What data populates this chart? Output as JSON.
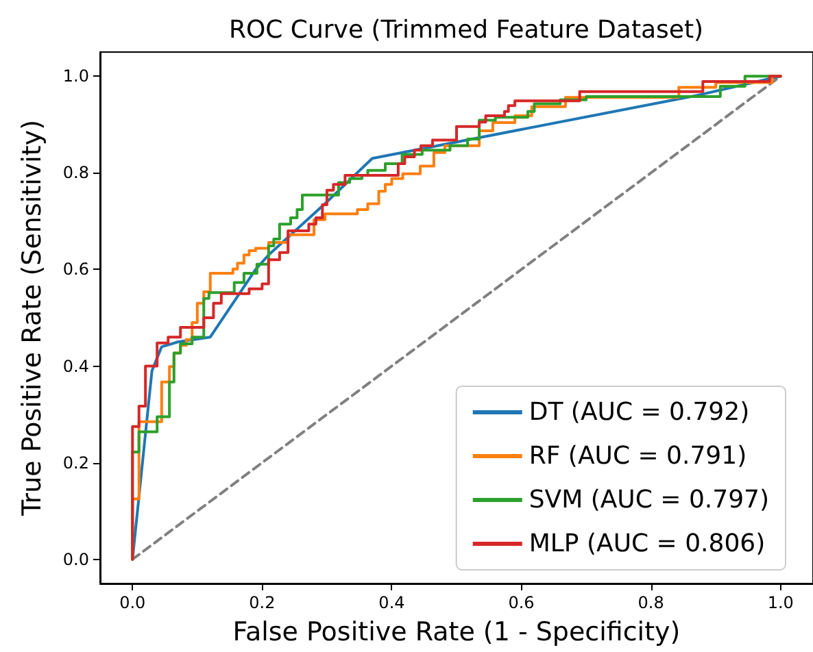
{
  "chart_data": {
    "type": "line",
    "title": "ROC Curve (Trimmed Feature Dataset)",
    "xlabel": "False Positive Rate (1 - Specificity)",
    "ylabel": "True Positive Rate (Sensitivity)",
    "xlim": [
      -0.05,
      1.05
    ],
    "ylim": [
      -0.05,
      1.05
    ],
    "xticks": [
      {
        "value": 0,
        "label": "0.0"
      },
      0.2,
      0.4,
      0.6,
      0.8,
      {
        "value": 1,
        "label": "1.0"
      }
    ],
    "yticks": [
      {
        "value": 0,
        "label": "0.0"
      },
      0.2,
      0.4,
      0.6,
      0.8,
      {
        "value": 1,
        "label": "1.0"
      }
    ],
    "grid": false,
    "legend": "bottom right",
    "marker": "none",
    "series": [
      {
        "name": "DT (AUC = 0.792)",
        "color": "#1f77b4",
        "x": [
          0,
          0.03,
          0.045,
          0.07,
          0.12,
          0.19,
          0.21,
          0.3,
          0.37,
          0.87,
          1
        ],
        "values": [
          0,
          0.39,
          0.44,
          0.45,
          0.46,
          0.6,
          0.63,
          0.74,
          0.83,
          0.96,
          1
        ]
      },
      {
        "name": "RF (AUC = 0.791)",
        "color": "#ff7f0e",
        "x": [
          0,
          0,
          0.01,
          0.01,
          0.045,
          0.045,
          0.057,
          0.057,
          0.064,
          0.064,
          0.074,
          0.074,
          0.083,
          0.083,
          0.092,
          0.092,
          0.1,
          0.1,
          0.11,
          0.11,
          0.12,
          0.12,
          0.155,
          0.155,
          0.162,
          0.162,
          0.172,
          0.172,
          0.18,
          0.18,
          0.19,
          0.19,
          0.21,
          0.21,
          0.24,
          0.24,
          0.28,
          0.28,
          0.297,
          0.297,
          0.347,
          0.347,
          0.363,
          0.363,
          0.38,
          0.38,
          0.39,
          0.39,
          0.4,
          0.4,
          0.417,
          0.417,
          0.444,
          0.444,
          0.465,
          0.465,
          0.482,
          0.482,
          0.535,
          0.535,
          0.556,
          0.556,
          0.59,
          0.59,
          0.616,
          0.616,
          0.668,
          0.668,
          0.843,
          0.843,
          0.9,
          0.9,
          0.987,
          0.987,
          1
        ],
        "values": [
          0,
          0.125,
          0.125,
          0.285,
          0.285,
          0.367,
          0.367,
          0.399,
          0.399,
          0.427,
          0.427,
          0.443,
          0.443,
          0.455,
          0.455,
          0.49,
          0.49,
          0.53,
          0.53,
          0.554,
          0.554,
          0.592,
          0.592,
          0.601,
          0.601,
          0.613,
          0.613,
          0.63,
          0.63,
          0.639,
          0.639,
          0.644,
          0.644,
          0.656,
          0.656,
          0.672,
          0.672,
          0.703,
          0.703,
          0.715,
          0.715,
          0.724,
          0.724,
          0.736,
          0.736,
          0.762,
          0.762,
          0.776,
          0.776,
          0.788,
          0.788,
          0.798,
          0.798,
          0.814,
          0.814,
          0.842,
          0.842,
          0.856,
          0.856,
          0.887,
          0.887,
          0.904,
          0.904,
          0.918,
          0.918,
          0.937,
          0.937,
          0.956,
          0.956,
          0.977,
          0.977,
          0.987,
          0.987,
          1,
          1
        ]
      },
      {
        "name": "SVM (AUC = 0.797)",
        "color": "#2ca02c",
        "x": [
          0,
          0,
          0.01,
          0.01,
          0.038,
          0.038,
          0.057,
          0.057,
          0.064,
          0.064,
          0.074,
          0.074,
          0.092,
          0.092,
          0.11,
          0.11,
          0.118,
          0.118,
          0.157,
          0.157,
          0.172,
          0.172,
          0.192,
          0.192,
          0.21,
          0.21,
          0.218,
          0.218,
          0.227,
          0.227,
          0.244,
          0.244,
          0.254,
          0.254,
          0.262,
          0.262,
          0.318,
          0.318,
          0.335,
          0.335,
          0.354,
          0.354,
          0.363,
          0.363,
          0.39,
          0.39,
          0.416,
          0.416,
          0.447,
          0.447,
          0.49,
          0.49,
          0.517,
          0.517,
          0.535,
          0.535,
          0.56,
          0.56,
          0.61,
          0.61,
          0.62,
          0.62,
          0.66,
          0.66,
          0.7,
          0.7,
          0.907,
          0.907,
          0.945,
          0.945,
          1
        ],
        "values": [
          0,
          0.222,
          0.222,
          0.264,
          0.264,
          0.295,
          0.295,
          0.367,
          0.367,
          0.427,
          0.427,
          0.446,
          0.446,
          0.46,
          0.46,
          0.54,
          0.54,
          0.552,
          0.552,
          0.573,
          0.573,
          0.592,
          0.592,
          0.611,
          0.611,
          0.649,
          0.649,
          0.663,
          0.663,
          0.694,
          0.694,
          0.707,
          0.707,
          0.724,
          0.724,
          0.754,
          0.754,
          0.78,
          0.78,
          0.788,
          0.788,
          0.795,
          0.795,
          0.805,
          0.805,
          0.819,
          0.819,
          0.838,
          0.838,
          0.847,
          0.847,
          0.856,
          0.856,
          0.87,
          0.87,
          0.909,
          0.909,
          0.915,
          0.915,
          0.927,
          0.927,
          0.943,
          0.943,
          0.951,
          0.951,
          0.958,
          0.958,
          0.979,
          0.979,
          1,
          1
        ]
      },
      {
        "name": "MLP (AUC = 0.806)",
        "color": "#d62728",
        "x": [
          0,
          0,
          0.01,
          0.01,
          0.02,
          0.02,
          0.038,
          0.038,
          0.055,
          0.055,
          0.074,
          0.074,
          0.11,
          0.11,
          0.125,
          0.125,
          0.137,
          0.137,
          0.18,
          0.18,
          0.2,
          0.2,
          0.21,
          0.21,
          0.227,
          0.227,
          0.24,
          0.24,
          0.272,
          0.272,
          0.283,
          0.283,
          0.293,
          0.293,
          0.3,
          0.3,
          0.31,
          0.31,
          0.328,
          0.328,
          0.41,
          0.41,
          0.42,
          0.42,
          0.435,
          0.435,
          0.445,
          0.445,
          0.463,
          0.463,
          0.5,
          0.5,
          0.535,
          0.535,
          0.545,
          0.545,
          0.574,
          0.574,
          0.58,
          0.58,
          0.59,
          0.59,
          0.69,
          0.69,
          0.88,
          0.88,
          0.983,
          0.983,
          1
        ],
        "values": [
          0,
          0.275,
          0.275,
          0.317,
          0.317,
          0.4,
          0.4,
          0.448,
          0.448,
          0.46,
          0.46,
          0.48,
          0.48,
          0.5,
          0.5,
          0.53,
          0.53,
          0.55,
          0.55,
          0.56,
          0.56,
          0.57,
          0.57,
          0.62,
          0.62,
          0.635,
          0.635,
          0.68,
          0.68,
          0.694,
          0.694,
          0.707,
          0.707,
          0.734,
          0.734,
          0.764,
          0.764,
          0.776,
          0.776,
          0.795,
          0.795,
          0.819,
          0.819,
          0.833,
          0.833,
          0.847,
          0.847,
          0.856,
          0.856,
          0.868,
          0.868,
          0.896,
          0.896,
          0.905,
          0.905,
          0.918,
          0.918,
          0.927,
          0.927,
          0.939,
          0.939,
          0.949,
          0.949,
          0.968,
          0.968,
          0.989,
          0.989,
          1,
          1
        ]
      },
      {
        "color": "#808080",
        "line_style": "dashed",
        "x": [
          0,
          1
        ],
        "values": [
          0,
          1
        ]
      }
    ]
  }
}
